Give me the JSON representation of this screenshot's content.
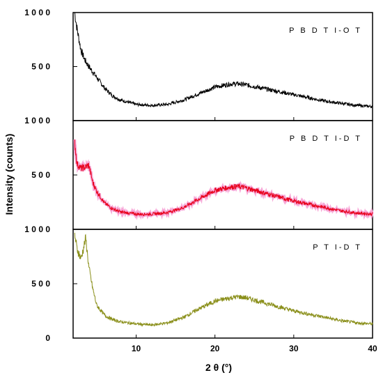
{
  "chart_data": {
    "type": "line",
    "xlabel": "2 θ (°)",
    "ylabel": "Intensity (counts)",
    "xlim": [
      2,
      40
    ],
    "x_ticks": [
      10,
      20,
      30,
      40
    ],
    "grid": false,
    "legend": "none",
    "panels": [
      {
        "label": "P B D T I-O T",
        "color": "#000000",
        "ylim": [
          0,
          1000
        ],
        "y_ticks": [
          500,
          1000
        ],
        "y_tick_labels": [
          "5 0 0",
          "1 0 0 0"
        ],
        "x": [
          2.2,
          2.5,
          3,
          3.5,
          4,
          5,
          6,
          7,
          8,
          10,
          12,
          14,
          16,
          18,
          20,
          22,
          23,
          24,
          26,
          28,
          30,
          32,
          34,
          36,
          38,
          40
        ],
        "values": [
          1000,
          850,
          650,
          560,
          500,
          400,
          300,
          230,
          190,
          150,
          140,
          150,
          190,
          250,
          310,
          340,
          340,
          330,
          300,
          270,
          240,
          210,
          180,
          160,
          140,
          130
        ]
      },
      {
        "label": "P B D T I-D T",
        "color": "#e8001a",
        "ylim": [
          0,
          1000
        ],
        "y_ticks": [
          500,
          1000
        ],
        "y_tick_labels": [
          "5 0 0",
          "1 0 0 0"
        ],
        "x": [
          2.2,
          2.5,
          3,
          3.5,
          4,
          4.5,
          5,
          6,
          7,
          8,
          10,
          12,
          14,
          16,
          18,
          20,
          22,
          23,
          24,
          26,
          28,
          30,
          32,
          34,
          36,
          38,
          40
        ],
        "values": [
          800,
          600,
          560,
          570,
          590,
          430,
          350,
          240,
          190,
          160,
          140,
          140,
          155,
          200,
          280,
          360,
          390,
          395,
          380,
          340,
          300,
          260,
          230,
          200,
          170,
          150,
          140
        ]
      },
      {
        "label": "P T I-D T",
        "color": "#8a8f1a",
        "ylim": [
          0,
          1000
        ],
        "y_ticks": [
          0,
          500,
          1000
        ],
        "y_tick_labels": [
          "0",
          "5 0 0",
          "1 0 0 0"
        ],
        "x": [
          2.2,
          2.5,
          3,
          3.3,
          3.6,
          4,
          4.5,
          5,
          6,
          7,
          8,
          10,
          12,
          14,
          16,
          18,
          20,
          22,
          23,
          24,
          26,
          28,
          30,
          32,
          34,
          36,
          38,
          40
        ],
        "values": [
          950,
          820,
          730,
          820,
          920,
          650,
          450,
          300,
          210,
          170,
          150,
          130,
          120,
          140,
          190,
          270,
          340,
          370,
          380,
          370,
          330,
          290,
          250,
          220,
          190,
          160,
          140,
          130
        ]
      }
    ]
  }
}
